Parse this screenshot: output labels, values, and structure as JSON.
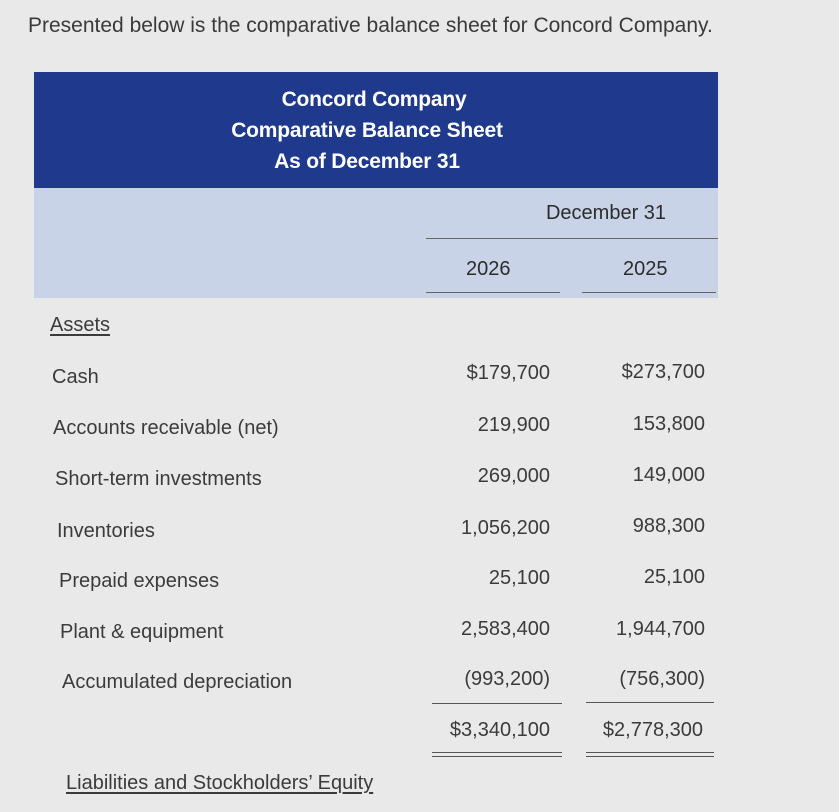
{
  "intro": "Presented below is the comparative balance sheet for Concord Company.",
  "header": {
    "company": "Concord Company",
    "statement": "Comparative Balance Sheet",
    "date": "As of December 31"
  },
  "columns": {
    "group": "December 31",
    "year1": "2026",
    "year2": "2025"
  },
  "sections": {
    "assets": "Assets",
    "liabilities": "Liabilities and Stockholders’ Equity"
  },
  "rows": [
    {
      "label": "Cash",
      "y2026": "$179,700",
      "y2025": "$273,700"
    },
    {
      "label": "Accounts receivable (net)",
      "y2026": "219,900",
      "y2025": "153,800"
    },
    {
      "label": "Short-term investments",
      "y2026": "269,000",
      "y2025": "149,000"
    },
    {
      "label": "Inventories",
      "y2026": "1,056,200",
      "y2025": "988,300"
    },
    {
      "label": "Prepaid expenses",
      "y2026": "25,100",
      "y2025": "25,100"
    },
    {
      "label": "Plant & equipment",
      "y2026": "2,583,400",
      "y2025": "1,944,700"
    },
    {
      "label": "Accumulated depreciation",
      "y2026": "(993,200)",
      "y2025": "(756,300)"
    }
  ],
  "total": {
    "y2026": "$3,340,100",
    "y2025": "$2,778,300"
  }
}
